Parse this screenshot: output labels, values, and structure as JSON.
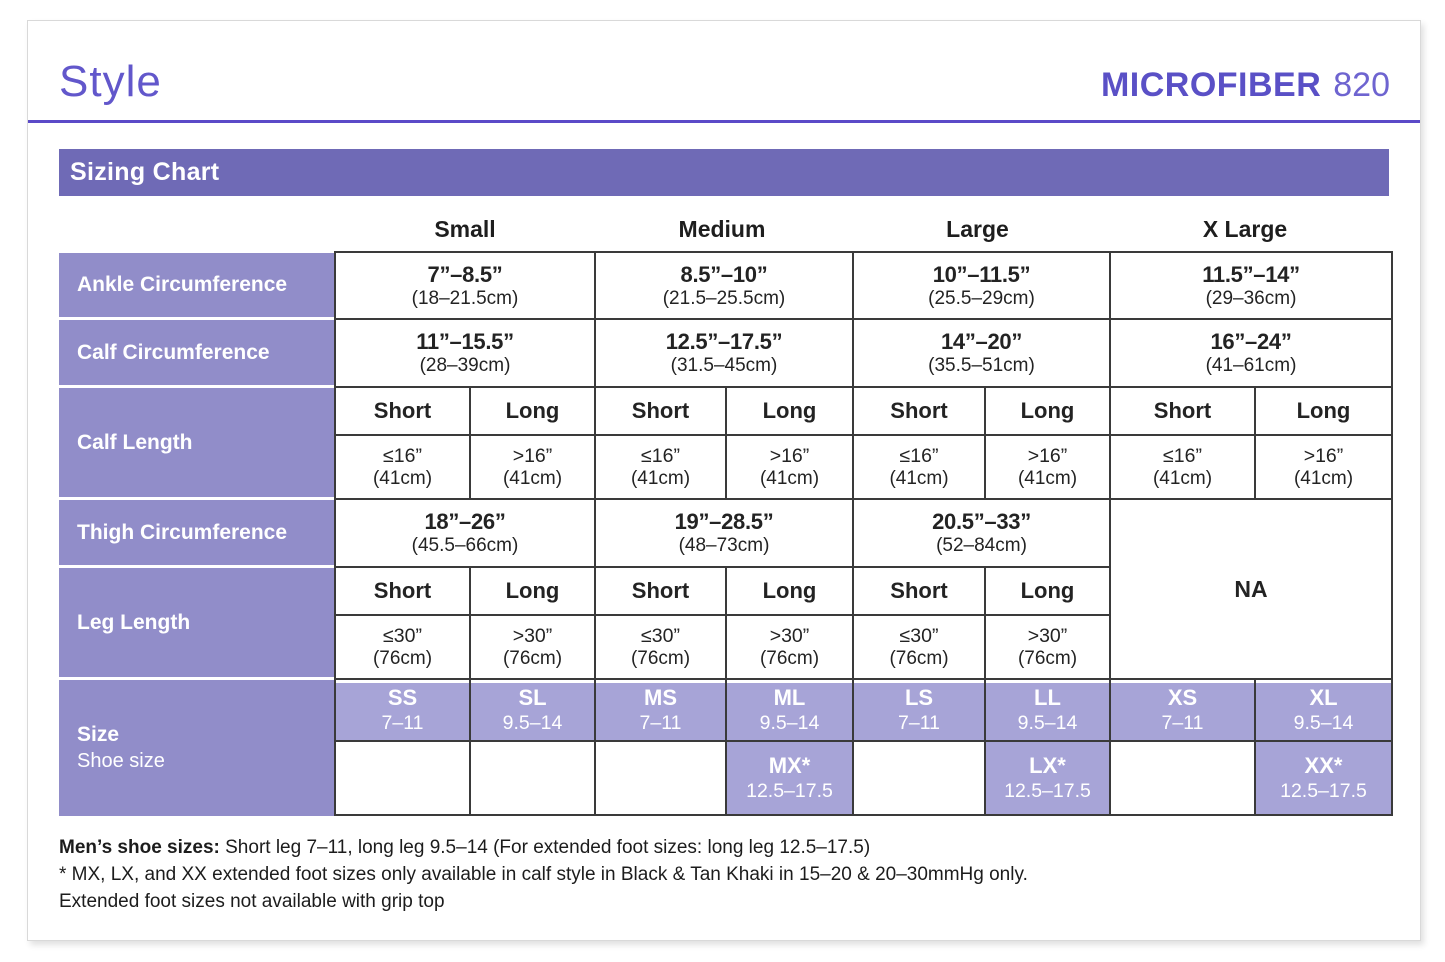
{
  "header": {
    "page_title": "Style",
    "brand": "MICROFIBER",
    "model": "820"
  },
  "banner": {
    "title": "Sizing Chart"
  },
  "size_headers": [
    "Small",
    "Medium",
    "Large",
    "X Large"
  ],
  "rows": {
    "ankle": {
      "label": "Ankle Circumference",
      "values": [
        {
          "in": "7”–8.5”",
          "cm": "(18–21.5cm)"
        },
        {
          "in": "8.5”–10”",
          "cm": "(21.5–25.5cm)"
        },
        {
          "in": "10”–11.5”",
          "cm": "(25.5–29cm)"
        },
        {
          "in": "11.5”–14”",
          "cm": "(29–36cm)"
        }
      ]
    },
    "calf_circumference": {
      "label": "Calf Circumference",
      "values": [
        {
          "in": "11”–15.5”",
          "cm": "(28–39cm)"
        },
        {
          "in": "12.5”–17.5”",
          "cm": "(31.5–45cm)"
        },
        {
          "in": "14”–20”",
          "cm": "(35.5–51cm)"
        },
        {
          "in": "16”–24”",
          "cm": "(41–61cm)"
        }
      ]
    },
    "calf_length": {
      "label": "Calf Length",
      "cols": [
        {
          "head": "Short",
          "in": "≤16”",
          "cm": "(41cm)"
        },
        {
          "head": "Long",
          "in": ">16”",
          "cm": "(41cm)"
        },
        {
          "head": "Short",
          "in": "≤16”",
          "cm": "(41cm)"
        },
        {
          "head": "Long",
          "in": ">16”",
          "cm": "(41cm)"
        },
        {
          "head": "Short",
          "in": "≤16”",
          "cm": "(41cm)"
        },
        {
          "head": "Long",
          "in": ">16”",
          "cm": "(41cm)"
        },
        {
          "head": "Short",
          "in": "≤16”",
          "cm": "(41cm)"
        },
        {
          "head": "Long",
          "in": ">16”",
          "cm": "(41cm)"
        }
      ]
    },
    "thigh": {
      "label": "Thigh Circumference",
      "values": [
        {
          "in": "18”–26”",
          "cm": "(45.5–66cm)"
        },
        {
          "in": "19”–28.5”",
          "cm": "(48–73cm)"
        },
        {
          "in": "20.5”–33”",
          "cm": "(52–84cm)"
        }
      ],
      "na": "NA"
    },
    "leg_length": {
      "label": "Leg Length",
      "cols": [
        {
          "head": "Short",
          "in": "≤30”",
          "cm": "(76cm)"
        },
        {
          "head": "Long",
          "in": ">30”",
          "cm": "(76cm)"
        },
        {
          "head": "Short",
          "in": "≤30”",
          "cm": "(76cm)"
        },
        {
          "head": "Long",
          "in": ">30”",
          "cm": "(76cm)"
        },
        {
          "head": "Short",
          "in": "≤30”",
          "cm": "(76cm)"
        },
        {
          "head": "Long",
          "in": ">30”",
          "cm": "(76cm)"
        }
      ]
    },
    "size": {
      "label": "Size",
      "sublabel": "Shoe size",
      "badges": [
        {
          "code": "SS",
          "shoe": "7–11"
        },
        {
          "code": "SL",
          "shoe": "9.5–14"
        },
        {
          "code": "MS",
          "shoe": "7–11"
        },
        {
          "code": "ML",
          "shoe": "9.5–14"
        },
        {
          "code": "LS",
          "shoe": "7–11"
        },
        {
          "code": "LL",
          "shoe": "9.5–14"
        },
        {
          "code": "XS",
          "shoe": "7–11"
        },
        {
          "code": "XL",
          "shoe": "9.5–14"
        }
      ],
      "extended": [
        {
          "code": "MX*",
          "shoe": "12.5–17.5"
        },
        {
          "code": "LX*",
          "shoe": "12.5–17.5"
        },
        {
          "code": "XX*",
          "shoe": "12.5–17.5"
        }
      ]
    }
  },
  "footnotes": {
    "line1_bold": "Men’s shoe sizes:",
    "line1_rest": " Short leg 7–11, long leg 9.5–14 (For extended foot sizes: long leg 12.5–17.5)",
    "line2": "* MX, LX, and XX extended foot sizes only available in calf style in Black & Tan Khaki in 15–20 & 20–30mmHg only.",
    "line3": "Extended foot sizes not available with grip top"
  },
  "colors": {
    "accent_purple": "#5a50c6",
    "banner_purple": "#6f6ab6",
    "label_cell_purple": "#918dc9",
    "badge_cell_purple": "#a7a4d7",
    "border_dark": "#3a3a3a"
  }
}
